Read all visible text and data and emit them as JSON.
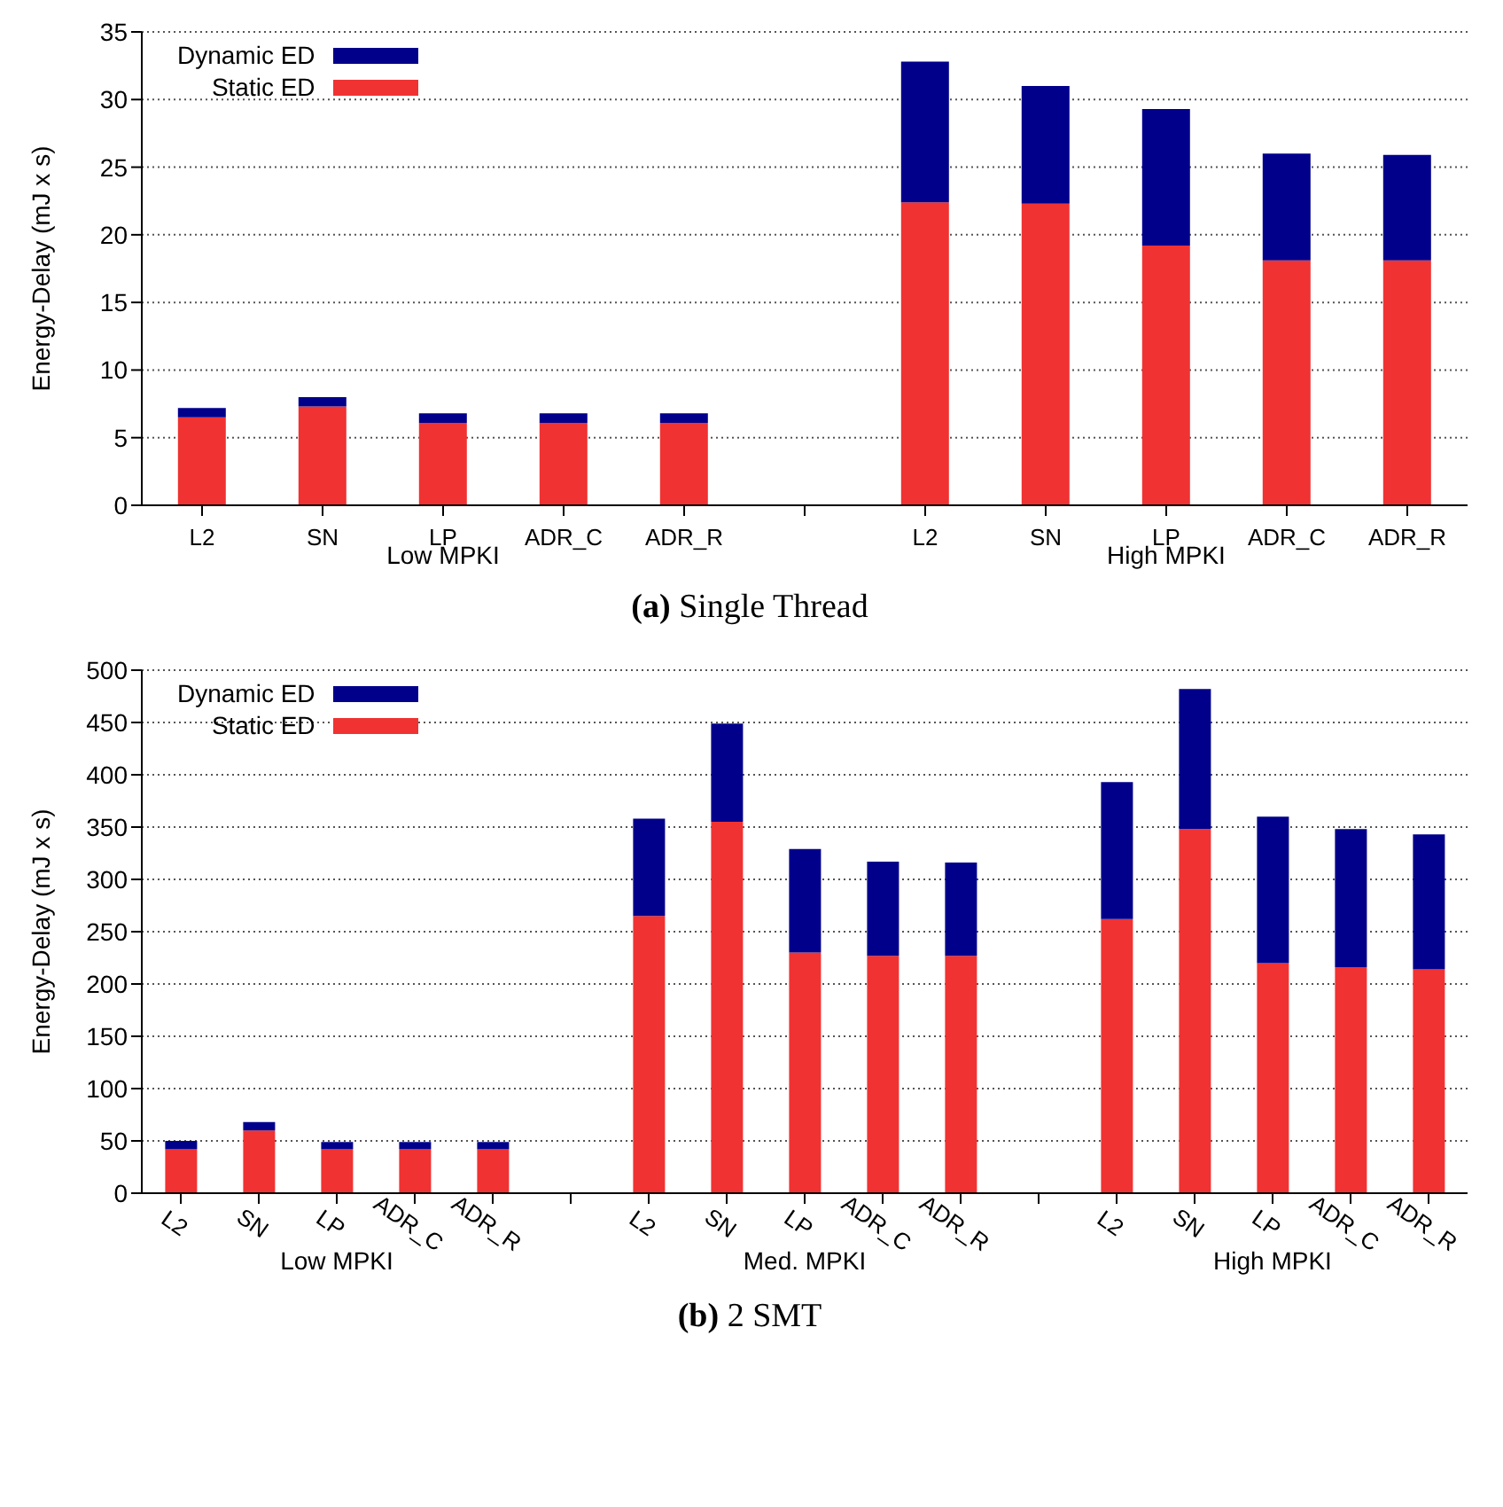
{
  "chart_data": [
    {
      "type": "bar",
      "title": "(a) Single Thread",
      "ylabel": "Energy-Delay (mJ x s)",
      "categories": [
        "L2",
        "SN",
        "LP",
        "ADR_C",
        "ADR_R",
        null,
        "L2",
        "SN",
        "LP",
        "ADR_C",
        "ADR_R"
      ],
      "stacked": true,
      "series": [
        {
          "name": "Static ED",
          "color": "#f03232",
          "values": [
            6.5,
            7.3,
            6.1,
            6.1,
            6.1,
            null,
            22.4,
            22.3,
            19.2,
            18.1,
            18.1
          ]
        },
        {
          "name": "Dynamic ED",
          "color": "#00008b",
          "values": [
            0.7,
            0.7,
            0.7,
            0.7,
            0.7,
            null,
            10.4,
            8.7,
            10.1,
            7.9,
            7.8
          ]
        }
      ],
      "ylim": [
        0,
        35
      ],
      "yticks": [
        0,
        5,
        10,
        15,
        20,
        25,
        30,
        35
      ],
      "grid": "y",
      "legend": "top left",
      "annotations": [
        "Low MPKI",
        "High MPKI"
      ]
    },
    {
      "type": "bar",
      "title": "(b) 2 SMT",
      "ylabel": "Energy-Delay (mJ x s)",
      "categories": [
        "L2",
        "SN",
        "LP",
        "ADR_C",
        "ADR_R",
        null,
        "L2",
        "SN",
        "LP",
        "ADR_C",
        "ADR_R",
        null,
        "L2",
        "SN",
        "LP",
        "ADR_C",
        "ADR_R"
      ],
      "stacked": true,
      "series": [
        {
          "name": "Static ED",
          "color": "#f03232",
          "values": [
            42,
            60,
            42,
            42,
            42,
            null,
            265,
            355,
            230,
            227,
            227,
            null,
            262,
            348,
            220,
            216,
            214
          ]
        },
        {
          "name": "Dynamic ED",
          "color": "#00008b",
          "values": [
            8,
            8,
            7,
            7,
            7,
            null,
            93,
            94,
            99,
            90,
            89,
            null,
            131,
            134,
            140,
            132,
            129
          ]
        }
      ],
      "ylim": [
        0,
        500
      ],
      "yticks": [
        0,
        50,
        100,
        150,
        200,
        250,
        300,
        350,
        400,
        450,
        500
      ],
      "grid": "y",
      "legend": "top left",
      "annotations": [
        "Low MPKI",
        "Med. MPKI",
        "High MPKI"
      ]
    }
  ]
}
